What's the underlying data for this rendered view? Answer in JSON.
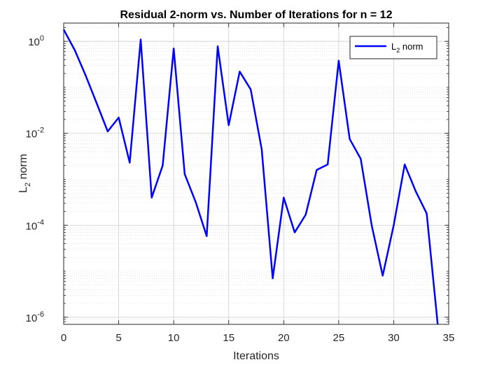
{
  "chart_data": {
    "type": "line",
    "title": "Residual 2-norm vs. Number of Iterations for n = 12",
    "xlabel": "Iterations",
    "ylabel": "L2 norm",
    "ylabel_main": "L",
    "ylabel_sub": "2",
    "ylabel_rest": " norm",
    "xlim": [
      0,
      35
    ],
    "ylim": [
      7e-07,
      2.5
    ],
    "yscale": "log",
    "grid": true,
    "minor_grid": true,
    "legend_position": "top-right",
    "x_ticks": [
      0,
      5,
      10,
      15,
      20,
      25,
      30,
      35
    ],
    "x_tick_labels": [
      "0",
      "5",
      "10",
      "15",
      "20",
      "25",
      "30",
      "35"
    ],
    "y_ticks": [
      {
        "value": 1,
        "base": "10",
        "exp": "0"
      },
      {
        "value": 0.01,
        "base": "10",
        "exp": "-2"
      },
      {
        "value": 0.0001,
        "base": "10",
        "exp": "-4"
      },
      {
        "value": 1e-06,
        "base": "10",
        "exp": "-6"
      }
    ],
    "series": [
      {
        "name": "L2 norm",
        "legend_main": "L",
        "legend_sub": "2",
        "legend_rest": " norm",
        "color": "#0000ff",
        "x": [
          0,
          1,
          2,
          3,
          4,
          5,
          6,
          7,
          8,
          9,
          10,
          11,
          12,
          13,
          14,
          15,
          16,
          17,
          18,
          19,
          20,
          21,
          22,
          23,
          24,
          25,
          26,
          27,
          28,
          29,
          30,
          31,
          32,
          33,
          34
        ],
        "y": [
          1.8,
          0.65,
          0.18,
          0.045,
          0.011,
          0.022,
          0.0023,
          1.1,
          0.0004,
          0.002,
          0.7,
          0.0013,
          0.00032,
          5.8e-05,
          0.78,
          0.015,
          0.22,
          0.09,
          0.0045,
          7e-06,
          0.0004,
          7e-05,
          0.00017,
          0.0016,
          0.0021,
          0.38,
          0.0075,
          0.0028,
          0.0001,
          8e-06,
          0.0001,
          0.0021,
          0.00055,
          0.00018,
          7e-07
        ]
      }
    ]
  }
}
